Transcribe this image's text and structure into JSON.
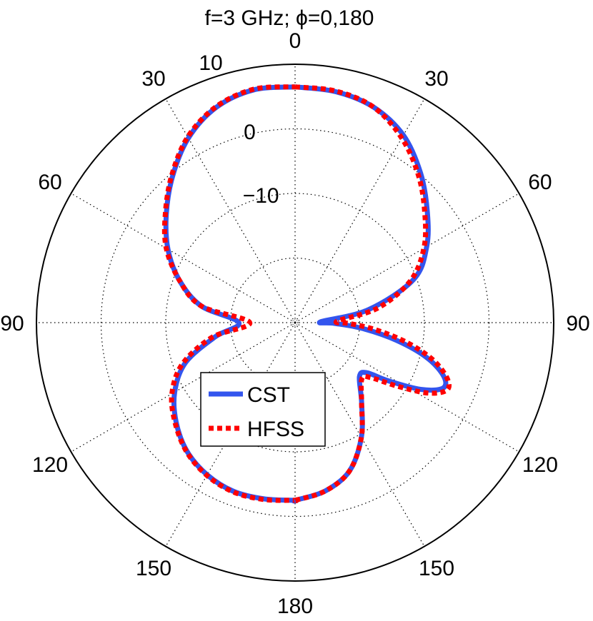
{
  "chart_data": {
    "type": "polar-line",
    "title": "f=3 GHz;   ϕ=0,180",
    "radial_axis": {
      "unit": "dB",
      "range": [
        -30,
        10
      ],
      "circles": [
        -20,
        -10,
        0,
        10
      ],
      "circle_labels": [
        {
          "value": 0,
          "text": "0"
        },
        {
          "value": -10,
          "text": "−10"
        }
      ],
      "outer_label": "10"
    },
    "angular_axis": {
      "spokes_deg": [
        0,
        30,
        60,
        90,
        120,
        150,
        180
      ],
      "labels_right": [
        "0",
        "30",
        "60",
        "90",
        "120",
        "150",
        "180"
      ],
      "labels_left": [
        "30",
        "60",
        "90",
        "120",
        "150"
      ]
    },
    "grid": true,
    "legend": {
      "position": "center-left",
      "entries": [
        "CST",
        "HFSS"
      ]
    },
    "series": [
      {
        "name": "CST",
        "color": "#3355ee",
        "style": "solid",
        "points_right": [
          [
            0,
            6.5
          ],
          [
            10,
            6.3
          ],
          [
            20,
            5.5
          ],
          [
            30,
            3.5
          ],
          [
            40,
            0.2
          ],
          [
            50,
            -3.3
          ],
          [
            60,
            -6.5
          ],
          [
            70,
            -10.5
          ],
          [
            80,
            -18.5
          ],
          [
            88,
            -26.0
          ],
          [
            91,
            -24.0
          ],
          [
            95,
            -19.5
          ],
          [
            100,
            -14.0
          ],
          [
            105,
            -8.8
          ],
          [
            110,
            -5.5
          ],
          [
            114,
            -5.0
          ],
          [
            118,
            -8.0
          ],
          [
            122,
            -13.0
          ],
          [
            125,
            -16.5
          ],
          [
            130,
            -17.0
          ],
          [
            140,
            -14.0
          ],
          [
            150,
            -9.5
          ],
          [
            160,
            -5.5
          ],
          [
            170,
            -3.5
          ],
          [
            180,
            -2.5
          ]
        ],
        "points_left": [
          [
            0,
            6.5
          ],
          [
            10,
            6.6
          ],
          [
            20,
            5.5
          ],
          [
            30,
            3.0
          ],
          [
            40,
            -0.5
          ],
          [
            50,
            -4.0
          ],
          [
            60,
            -7.3
          ],
          [
            70,
            -11.0
          ],
          [
            80,
            -15.3
          ],
          [
            90,
            -21.3
          ],
          [
            100,
            -17.5
          ],
          [
            110,
            -12.0
          ],
          [
            120,
            -8.5
          ],
          [
            130,
            -6.0
          ],
          [
            140,
            -4.0
          ],
          [
            150,
            -2.8
          ],
          [
            160,
            -2.2
          ],
          [
            170,
            -2.3
          ],
          [
            180,
            -2.5
          ]
        ]
      },
      {
        "name": "HFSS",
        "color": "#ff0000",
        "style": "dotted",
        "points_right": [
          [
            0,
            6.5
          ],
          [
            10,
            6.4
          ],
          [
            20,
            5.5
          ],
          [
            30,
            3.0
          ],
          [
            40,
            -0.3
          ],
          [
            50,
            -3.8
          ],
          [
            60,
            -7.0
          ],
          [
            70,
            -11.0
          ],
          [
            80,
            -17.0
          ],
          [
            88,
            -23.5
          ],
          [
            91,
            -21.5
          ],
          [
            95,
            -17.5
          ],
          [
            100,
            -12.5
          ],
          [
            105,
            -8.0
          ],
          [
            110,
            -5.0
          ],
          [
            114,
            -4.3
          ],
          [
            118,
            -6.8
          ],
          [
            122,
            -11.5
          ],
          [
            126,
            -15.5
          ],
          [
            130,
            -16.5
          ],
          [
            140,
            -14.0
          ],
          [
            150,
            -9.5
          ],
          [
            160,
            -5.5
          ],
          [
            170,
            -3.5
          ],
          [
            180,
            -2.5
          ]
        ],
        "points_left": [
          [
            0,
            6.5
          ],
          [
            10,
            6.7
          ],
          [
            20,
            5.6
          ],
          [
            30,
            3.2
          ],
          [
            40,
            -0.3
          ],
          [
            50,
            -3.8
          ],
          [
            60,
            -7.0
          ],
          [
            70,
            -11.0
          ],
          [
            80,
            -15.3
          ],
          [
            90,
            -23.0
          ],
          [
            100,
            -17.0
          ],
          [
            110,
            -11.5
          ],
          [
            120,
            -8.0
          ],
          [
            130,
            -5.8
          ],
          [
            140,
            -3.9
          ],
          [
            150,
            -2.7
          ],
          [
            160,
            -2.1
          ],
          [
            170,
            -2.2
          ],
          [
            180,
            -2.5
          ]
        ]
      }
    ]
  }
}
